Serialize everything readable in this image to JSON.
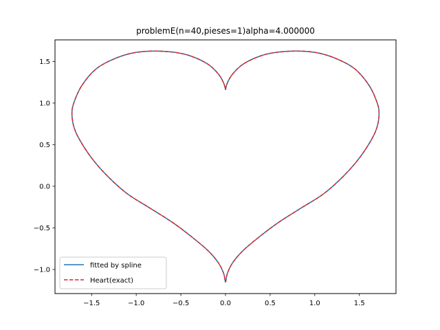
{
  "chart_data": {
    "type": "line",
    "title": "problemE(n=40,pieses=1)alpha=4.000000",
    "xlabel": "",
    "ylabel": "",
    "xlim": [
      -1.91,
      1.91
    ],
    "ylim": [
      -1.29,
      1.76
    ],
    "x_ticks": [
      -1.5,
      -1.0,
      -0.5,
      0.0,
      0.5,
      1.0,
      1.5
    ],
    "x_tick_labels": [
      "−1.5",
      "−1.0",
      "−0.5",
      "0.0",
      "0.5",
      "1.0",
      "1.5"
    ],
    "y_ticks": [
      -1.0,
      -0.5,
      0.0,
      0.5,
      1.0,
      1.5
    ],
    "y_tick_labels": [
      "−1.0",
      "−0.5",
      "0.0",
      "0.5",
      "1.0",
      "1.5"
    ],
    "grid": false,
    "legend_position": "lower-left",
    "series": [
      {
        "name": "fitted by spline",
        "color": "#1f77b4",
        "style": "solid",
        "points": [
          [
            0.0,
            1.16
          ],
          [
            0.02,
            1.24
          ],
          [
            0.08,
            1.35
          ],
          [
            0.2,
            1.47
          ],
          [
            0.4,
            1.57
          ],
          [
            0.6,
            1.614
          ],
          [
            0.84,
            1.625
          ],
          [
            1.05,
            1.6
          ],
          [
            1.25,
            1.53
          ],
          [
            1.45,
            1.41
          ],
          [
            1.61,
            1.21
          ],
          [
            1.7,
            1.0
          ],
          [
            1.72,
            0.87
          ],
          [
            1.7,
            0.72
          ],
          [
            1.64,
            0.57
          ],
          [
            1.5,
            0.34
          ],
          [
            1.32,
            0.12
          ],
          [
            1.1,
            -0.09
          ],
          [
            0.85,
            -0.26
          ],
          [
            0.6,
            -0.43
          ],
          [
            0.4,
            -0.59
          ],
          [
            0.2,
            -0.77
          ],
          [
            0.08,
            -0.92
          ],
          [
            0.02,
            -1.05
          ],
          [
            0.0,
            -1.15
          ],
          [
            -0.02,
            -1.05
          ],
          [
            -0.08,
            -0.92
          ],
          [
            -0.2,
            -0.77
          ],
          [
            -0.4,
            -0.59
          ],
          [
            -0.6,
            -0.43
          ],
          [
            -0.85,
            -0.26
          ],
          [
            -1.1,
            -0.09
          ],
          [
            -1.32,
            0.12
          ],
          [
            -1.5,
            0.34
          ],
          [
            -1.64,
            0.57
          ],
          [
            -1.7,
            0.72
          ],
          [
            -1.72,
            0.87
          ],
          [
            -1.7,
            1.0
          ],
          [
            -1.61,
            1.21
          ],
          [
            -1.45,
            1.41
          ],
          [
            -1.25,
            1.53
          ],
          [
            -1.05,
            1.6
          ],
          [
            -0.84,
            1.625
          ],
          [
            -0.6,
            1.614
          ],
          [
            -0.4,
            1.57
          ],
          [
            -0.2,
            1.47
          ],
          [
            -0.08,
            1.35
          ],
          [
            -0.02,
            1.24
          ],
          [
            0.0,
            1.16
          ]
        ]
      },
      {
        "name": "Heart(exact)",
        "color": "#d62728",
        "style": "dashed",
        "points": [
          [
            0.0,
            1.16
          ],
          [
            0.02,
            1.24
          ],
          [
            0.08,
            1.35
          ],
          [
            0.2,
            1.47
          ],
          [
            0.4,
            1.57
          ],
          [
            0.6,
            1.614
          ],
          [
            0.84,
            1.625
          ],
          [
            1.05,
            1.6
          ],
          [
            1.25,
            1.53
          ],
          [
            1.45,
            1.41
          ],
          [
            1.61,
            1.21
          ],
          [
            1.7,
            1.0
          ],
          [
            1.72,
            0.87
          ],
          [
            1.7,
            0.72
          ],
          [
            1.64,
            0.57
          ],
          [
            1.5,
            0.34
          ],
          [
            1.32,
            0.12
          ],
          [
            1.1,
            -0.09
          ],
          [
            0.85,
            -0.26
          ],
          [
            0.6,
            -0.43
          ],
          [
            0.4,
            -0.59
          ],
          [
            0.2,
            -0.77
          ],
          [
            0.08,
            -0.92
          ],
          [
            0.02,
            -1.05
          ],
          [
            0.0,
            -1.15
          ],
          [
            -0.02,
            -1.05
          ],
          [
            -0.08,
            -0.92
          ],
          [
            -0.2,
            -0.77
          ],
          [
            -0.4,
            -0.59
          ],
          [
            -0.6,
            -0.43
          ],
          [
            -0.85,
            -0.26
          ],
          [
            -1.1,
            -0.09
          ],
          [
            -1.32,
            0.12
          ],
          [
            -1.5,
            0.34
          ],
          [
            -1.64,
            0.57
          ],
          [
            -1.7,
            0.72
          ],
          [
            -1.72,
            0.87
          ],
          [
            -1.7,
            1.0
          ],
          [
            -1.61,
            1.21
          ],
          [
            -1.45,
            1.41
          ],
          [
            -1.25,
            1.53
          ],
          [
            -1.05,
            1.6
          ],
          [
            -0.84,
            1.625
          ],
          [
            -0.6,
            1.614
          ],
          [
            -0.4,
            1.57
          ],
          [
            -0.2,
            1.47
          ],
          [
            -0.08,
            1.35
          ],
          [
            -0.02,
            1.24
          ],
          [
            0.0,
            1.16
          ]
        ]
      }
    ]
  }
}
